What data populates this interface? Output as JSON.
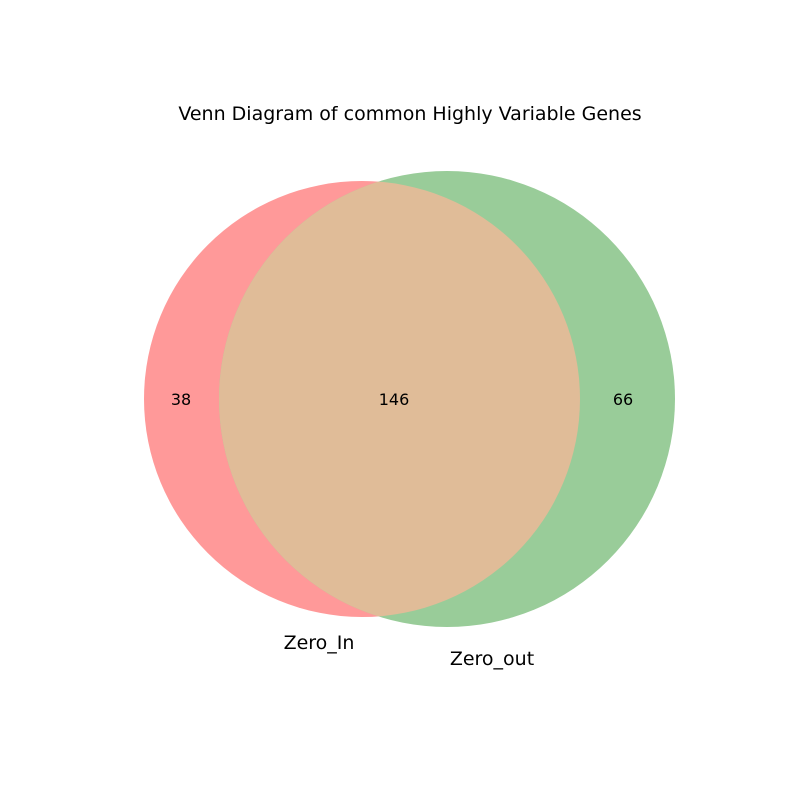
{
  "diagram": {
    "title": "Venn Diagram of common Highly Variable Genes",
    "sets": [
      {
        "name": "Zero_In",
        "color": "#ff6666"
      },
      {
        "name": "Zero_out",
        "color": "#66b266"
      }
    ],
    "overlap_color": "#e0bc98",
    "counts": {
      "only_a": "38",
      "both": "146",
      "only_b": "66"
    }
  }
}
